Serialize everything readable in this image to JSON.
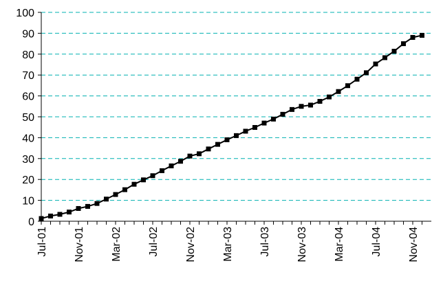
{
  "chart_data": {
    "type": "line",
    "title": "",
    "xlabel": "",
    "ylabel": "",
    "ylim": [
      0,
      100
    ],
    "yticks": [
      0,
      10,
      20,
      30,
      40,
      50,
      60,
      70,
      80,
      90,
      100
    ],
    "grid": true,
    "legend": "none",
    "colors": {
      "line": "#000000",
      "marker": "#000000",
      "grid": "#00b0b0"
    },
    "x": [
      "Jul-01",
      "Aug-01",
      "Sep-01",
      "Oct-01",
      "Nov-01",
      "Dec-01",
      "Jan-02",
      "Feb-02",
      "Mar-02",
      "Apr-02",
      "May-02",
      "Jun-02",
      "Jul-02",
      "Aug-02",
      "Sep-02",
      "Oct-02",
      "Nov-02",
      "Dec-02",
      "Jan-03",
      "Feb-03",
      "Mar-03",
      "Apr-03",
      "May-03",
      "Jun-03",
      "Jul-03",
      "Aug-03",
      "Sep-03",
      "Oct-03",
      "Nov-03",
      "Dec-03",
      "Jan-04",
      "Feb-04",
      "Mar-04",
      "Apr-04",
      "May-04",
      "Jun-04",
      "Jul-04",
      "Aug-04",
      "Sep-04",
      "Oct-04",
      "Nov-04",
      "Dec-04"
    ],
    "x_tick_labels": [
      "Jul-01",
      "Nov-01",
      "Mar-02",
      "Jul-02",
      "Nov-02",
      "Mar-03",
      "Jul-03",
      "Nov-03",
      "Mar-04",
      "Jul-04",
      "Nov-04"
    ],
    "series": [
      {
        "values": [
          1.3,
          2.5,
          3.3,
          4.4,
          6.1,
          7.1,
          8.5,
          10.6,
          12.8,
          15.1,
          17.7,
          19.8,
          21.8,
          24.2,
          26.5,
          28.7,
          31.2,
          32.3,
          34.6,
          36.8,
          39.0,
          41.0,
          43.1,
          44.9,
          47.0,
          48.9,
          51.2,
          53.5,
          55.0,
          55.6,
          57.4,
          59.5,
          62.1,
          64.9,
          68.0,
          71.1,
          75.3,
          78.3,
          81.4,
          85.0,
          88.0,
          89.0
        ]
      }
    ]
  }
}
